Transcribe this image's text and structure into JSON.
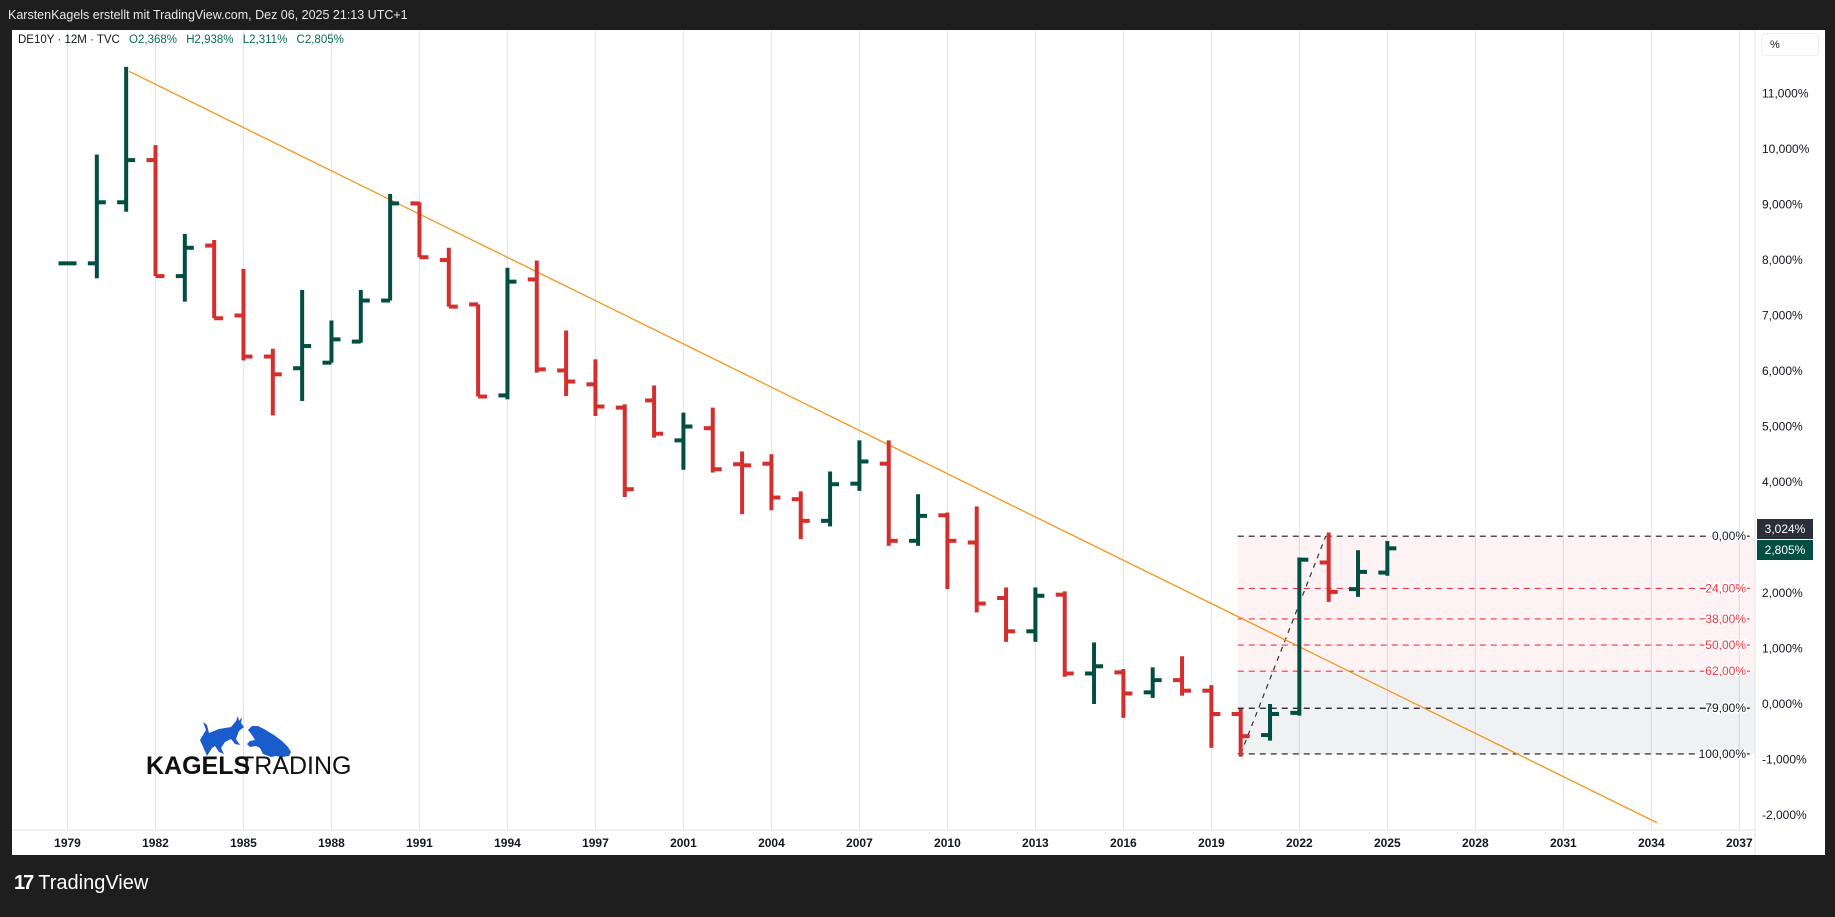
{
  "header": {
    "attribution": "KarstenKagels erstellt mit TradingView.com, Dez 06, 2025 21:13 UTC+1"
  },
  "legend": {
    "symbol": "DE10Y · 12M · TVC",
    "o_label": "O",
    "o": "2,368%",
    "h_label": "H",
    "h": "2,938%",
    "l_label": "L",
    "l": "2,311%",
    "c_label": "C",
    "c": "2,805%"
  },
  "price_axis": {
    "unit_button": "%"
  },
  "current_labels": {
    "high_marker": "3,024%",
    "last_price": "2,805%"
  },
  "logo": {
    "brand_bold": "KAGELS",
    "brand_light": "TRADING"
  },
  "footer": {
    "brand": "TradingView"
  },
  "colors": {
    "up": "#024e42",
    "down": "#d32f2f",
    "trendline": "#f7931e",
    "fib_red": "#f23645",
    "fib_black": "#131722",
    "current_high_bg": "#2a2e39",
    "current_last_bg": "#024e42"
  },
  "chart_data": {
    "type": "ohlc",
    "title": "DE10Y · 12M · TVC",
    "interval": "12M",
    "ylabel": "%",
    "ylim": [
      -2.3,
      11.9
    ],
    "yticks": [
      11,
      10,
      9,
      8,
      7,
      6,
      5,
      4,
      3,
      2,
      1,
      0,
      -1,
      -2
    ],
    "ytick_labels": [
      "11,000%",
      "10,000%",
      "9,000%",
      "8,000%",
      "7,000%",
      "6,000%",
      "5,000%",
      "4,000%",
      "3,000%",
      "2,000%",
      "1,000%",
      "0,000%",
      "-1,000%",
      "-2,000%"
    ],
    "hidden_ytick_labels_note": "3,000% hidden behind current price labels",
    "xtick_labels": [
      "1979",
      "1982",
      "1985",
      "1988",
      "1991",
      "1994",
      "1997",
      "2001",
      "2004",
      "2007",
      "2010",
      "2013",
      "2016",
      "2019",
      "2022",
      "2025",
      "2028",
      "2031",
      "2034",
      "2037"
    ],
    "xtick_every_bars": 3,
    "bars": [
      [
        1979,
        7.94,
        7.96,
        7.92,
        7.94
      ],
      [
        1980,
        7.94,
        9.9,
        7.67,
        9.04
      ],
      [
        1981,
        9.04,
        11.48,
        8.87,
        9.8
      ],
      [
        1982,
        9.8,
        10.07,
        7.71,
        7.71
      ],
      [
        1983,
        7.71,
        8.47,
        7.25,
        8.22
      ],
      [
        1984,
        8.26,
        8.36,
        6.95,
        6.95
      ],
      [
        1985,
        7.0,
        7.84,
        6.19,
        6.26
      ],
      [
        1986,
        6.26,
        6.4,
        5.2,
        5.94
      ],
      [
        1987,
        6.05,
        7.46,
        5.46,
        6.45
      ],
      [
        1988,
        6.15,
        6.91,
        6.15,
        6.57
      ],
      [
        1989,
        6.53,
        7.46,
        6.51,
        7.27
      ],
      [
        1990,
        7.27,
        9.19,
        7.27,
        9.02
      ],
      [
        1991,
        9.02,
        9.04,
        8.05,
        8.05
      ],
      [
        1992,
        8.0,
        8.22,
        7.16,
        7.16
      ],
      [
        1993,
        7.2,
        7.2,
        5.54,
        5.54
      ],
      [
        1994,
        5.56,
        7.86,
        5.49,
        7.61
      ],
      [
        1995,
        7.65,
        7.99,
        5.97,
        6.03
      ],
      [
        1996,
        6.01,
        6.73,
        5.55,
        5.81
      ],
      [
        1997,
        5.76,
        6.21,
        5.19,
        5.36
      ],
      [
        1998,
        5.34,
        5.4,
        3.73,
        3.87
      ],
      [
        2000,
        5.47,
        5.74,
        4.8,
        4.87
      ],
      [
        2001,
        4.75,
        5.25,
        4.22,
        5.0
      ],
      [
        2002,
        4.97,
        5.34,
        4.17,
        4.23
      ],
      [
        2003,
        4.32,
        4.55,
        3.42,
        4.3
      ],
      [
        2004,
        4.33,
        4.5,
        3.49,
        3.72
      ],
      [
        2005,
        3.69,
        3.83,
        2.97,
        3.3
      ],
      [
        2006,
        3.3,
        4.19,
        3.2,
        3.96
      ],
      [
        2007,
        3.97,
        4.75,
        3.84,
        4.37
      ],
      [
        2008,
        4.33,
        4.75,
        2.85,
        2.94
      ],
      [
        2009,
        2.94,
        3.78,
        2.85,
        3.39
      ],
      [
        2010,
        3.4,
        3.45,
        2.07,
        2.94
      ],
      [
        2011,
        2.91,
        3.56,
        1.65,
        1.81
      ],
      [
        2012,
        1.91,
        2.1,
        1.12,
        1.31
      ],
      [
        2013,
        1.31,
        2.1,
        1.12,
        1.95
      ],
      [
        2014,
        1.97,
        2.03,
        0.49,
        0.55
      ],
      [
        2015,
        0.55,
        1.11,
        0.0,
        0.68
      ],
      [
        2016,
        0.57,
        0.63,
        -0.25,
        0.19
      ],
      [
        2017,
        0.21,
        0.66,
        0.11,
        0.43
      ],
      [
        2018,
        0.43,
        0.86,
        0.15,
        0.24
      ],
      [
        2019,
        0.24,
        0.34,
        -0.79,
        -0.18
      ],
      [
        2020,
        -0.18,
        -0.09,
        -0.95,
        -0.58
      ],
      [
        2021,
        -0.56,
        0.0,
        -0.66,
        -0.18
      ],
      [
        2022,
        -0.16,
        2.64,
        -0.21,
        2.6
      ],
      [
        2023,
        2.55,
        3.09,
        1.84,
        2.02
      ],
      [
        2024,
        2.07,
        2.77,
        1.93,
        2.38
      ],
      [
        2025,
        2.368,
        2.938,
        2.311,
        2.805
      ]
    ],
    "trendline": {
      "from": {
        "bar_index": 2.1,
        "value": 11.4
      },
      "to": {
        "bar_index": 54.2,
        "value": -2.14
      }
    },
    "fibonacci": {
      "start_bar_index": 39.9,
      "high": 3.024,
      "low": -0.9,
      "diagonal": {
        "from": {
          "bar_index": 40.0,
          "value": -0.9
        },
        "to": {
          "bar_index": 42.9,
          "value": 3.024
        }
      },
      "levels": [
        {
          "ratio": 0.0,
          "label": "0,00%",
          "color": "#131722"
        },
        {
          "ratio": 0.24,
          "label": "24,00%",
          "color": "#f23645"
        },
        {
          "ratio": 0.38,
          "label": "38,00%",
          "color": "#f23645"
        },
        {
          "ratio": 0.5,
          "label": "50,00%",
          "color": "#f23645"
        },
        {
          "ratio": 0.62,
          "label": "62,00%",
          "color": "#f23645"
        },
        {
          "ratio": 0.79,
          "label": "79,00%",
          "color": "#131722"
        },
        {
          "ratio": 1.0,
          "label": "100,00%",
          "color": "#131722"
        }
      ]
    }
  }
}
